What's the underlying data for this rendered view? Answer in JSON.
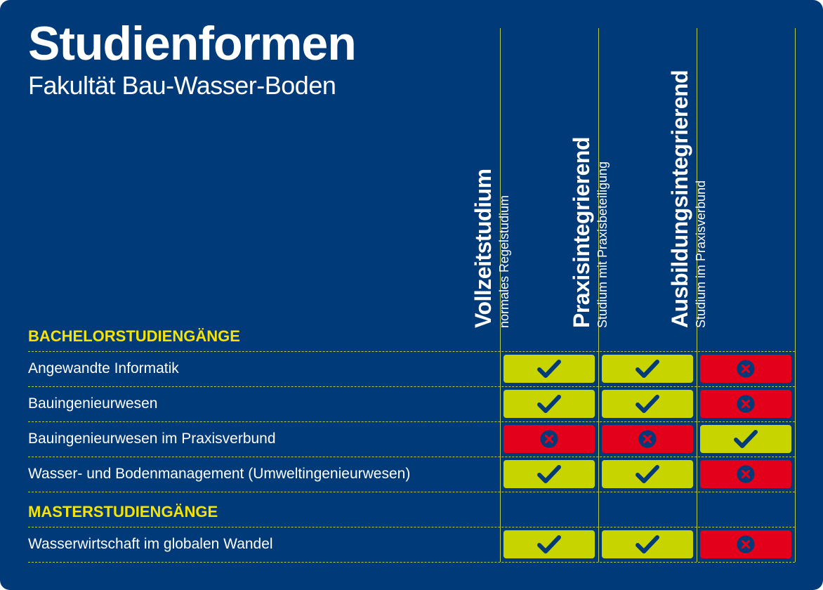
{
  "header": {
    "title": "Studienformen",
    "subtitle": "Fakultät Bau-Wasser-Boden"
  },
  "columns": [
    {
      "title": "Vollzeitstudium",
      "subtitle": "normales Regelstudium"
    },
    {
      "title": "Praxisintegrierend",
      "subtitle": "Studium mit Praxisbeteiligung"
    },
    {
      "title": "Ausbildungsintegrierend",
      "subtitle": "Studium im Praxisverbund"
    }
  ],
  "sections": [
    {
      "heading": "BACHELORSTUDIENGÄNGE",
      "rows": [
        {
          "label": "Angewandte Informatik",
          "values": [
            true,
            true,
            false
          ]
        },
        {
          "label": "Bauingenieurwesen",
          "values": [
            true,
            true,
            false
          ]
        },
        {
          "label": "Bauingenieurwesen im Praxisverbund",
          "values": [
            false,
            false,
            true
          ]
        },
        {
          "label": "Wasser- und Bodenmanagement (Umweltingenieurwesen)",
          "values": [
            true,
            true,
            false
          ]
        }
      ]
    },
    {
      "heading": "MASTERSTUDIENGÄNGE",
      "rows": [
        {
          "label": "Wasserwirtschaft im globalen Wandel",
          "values": [
            true,
            true,
            false
          ]
        }
      ]
    }
  ],
  "colors": {
    "background": "#003a78",
    "yes": "#c8d400",
    "no": "#e3001b",
    "heading": "#f6e400",
    "lines": "#b9c94a"
  },
  "icons": {
    "yes": "checkmark-icon",
    "no": "cross-circle-icon"
  }
}
